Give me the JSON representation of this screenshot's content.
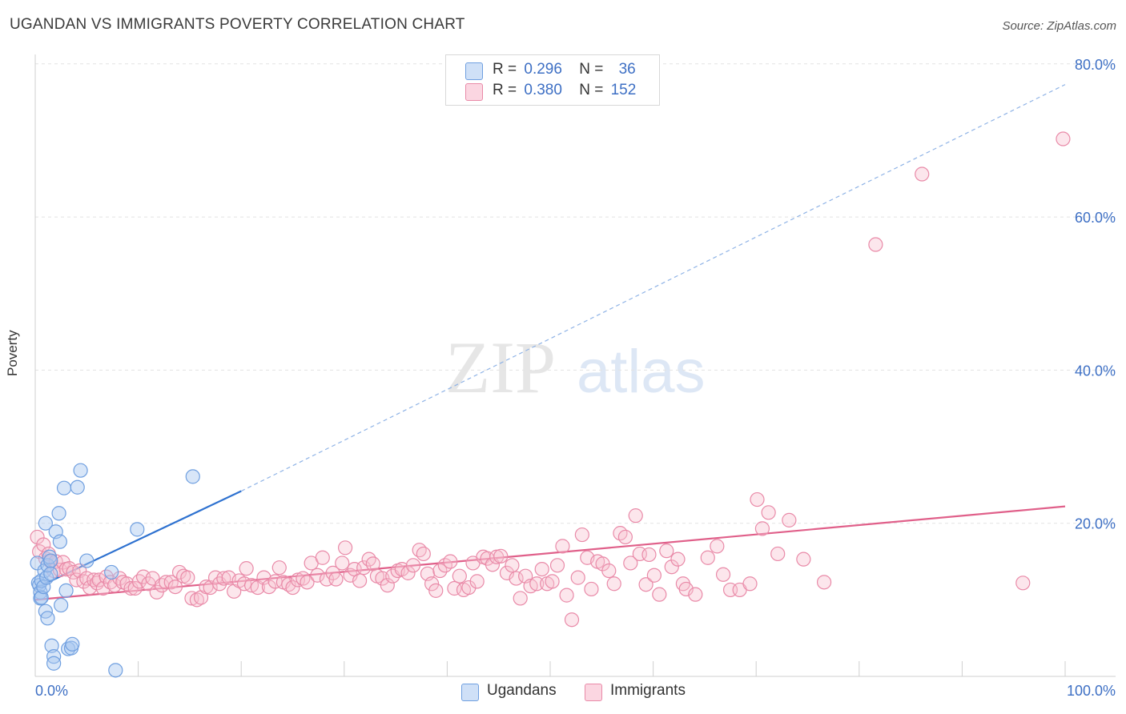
{
  "title": "UGANDAN VS IMMIGRANTS POVERTY CORRELATION CHART",
  "source": "Source: ZipAtlas.com",
  "watermark_zip": "ZIP",
  "watermark_atlas": "atlas",
  "legend": {
    "r_label": "R =",
    "n_label": "N =",
    "rows": [
      {
        "r": "0.296",
        "n": "36",
        "color": "#a9c8f0",
        "border": "#6f9fe0"
      },
      {
        "r": "0.380",
        "n": "152",
        "color": "#f7c0d0",
        "border": "#e98aa8"
      }
    ]
  },
  "bottom_legend": [
    {
      "label": "Ugandans",
      "color": "#a9c8f0",
      "border": "#6f9fe0"
    },
    {
      "label": "Immigrants",
      "color": "#f7c0d0",
      "border": "#e98aa8"
    }
  ],
  "chart_data": {
    "type": "scatter",
    "xlabel": "",
    "ylabel": "Poverty",
    "xlim": [
      0,
      100
    ],
    "ylim": [
      0,
      82
    ],
    "x_tick_labels": [
      "0.0%",
      "100.0%"
    ],
    "y_ticks": [
      20,
      40,
      60,
      80
    ],
    "y_tick_labels": [
      "20.0%",
      "40.0%",
      "60.0%",
      "80.0%"
    ],
    "grid": true,
    "legend_position": "top-center",
    "series": [
      {
        "name": "Ugandans",
        "color": "#6f9fe0",
        "trend": {
          "x0": 0,
          "y0": 11.5,
          "x1": 20,
          "y1": 24.2,
          "dash_to_x": 100,
          "dash_to_y": 77.3,
          "line_color": "#2f72d0"
        },
        "points": [
          [
            0.2,
            14.8
          ],
          [
            0.3,
            12.2
          ],
          [
            0.4,
            11.9
          ],
          [
            0.5,
            11.0
          ],
          [
            0.5,
            10.2
          ],
          [
            0.6,
            12.5
          ],
          [
            0.6,
            10.3
          ],
          [
            0.8,
            11.7
          ],
          [
            0.9,
            13.8
          ],
          [
            1.0,
            20.0
          ],
          [
            1.0,
            8.5
          ],
          [
            1.1,
            12.9
          ],
          [
            1.2,
            14.5
          ],
          [
            1.2,
            7.6
          ],
          [
            1.4,
            15.6
          ],
          [
            1.5,
            15.1
          ],
          [
            1.5,
            13.4
          ],
          [
            1.6,
            4.0
          ],
          [
            1.8,
            2.6
          ],
          [
            1.8,
            1.7
          ],
          [
            2.0,
            18.9
          ],
          [
            2.3,
            21.3
          ],
          [
            2.4,
            17.6
          ],
          [
            2.5,
            9.3
          ],
          [
            2.8,
            24.6
          ],
          [
            3.0,
            11.2
          ],
          [
            3.2,
            3.6
          ],
          [
            3.5,
            3.7
          ],
          [
            3.6,
            4.2
          ],
          [
            4.1,
            24.7
          ],
          [
            4.4,
            26.9
          ],
          [
            5.0,
            15.1
          ],
          [
            7.4,
            13.6
          ],
          [
            7.8,
            0.8
          ],
          [
            9.9,
            19.2
          ],
          [
            15.3,
            26.1
          ]
        ]
      },
      {
        "name": "Immigrants",
        "color": "#e98aa8",
        "trend": {
          "x0": 0,
          "y0": 10.0,
          "x1": 100,
          "y1": 22.2,
          "line_color": "#e0608a"
        },
        "points": [
          [
            0.2,
            18.2
          ],
          [
            0.4,
            16.3
          ],
          [
            0.8,
            17.2
          ],
          [
            1.0,
            15.4
          ],
          [
            1.3,
            16.0
          ],
          [
            1.5,
            15.0
          ],
          [
            1.8,
            13.8
          ],
          [
            2.0,
            15.0
          ],
          [
            2.4,
            13.9
          ],
          [
            2.7,
            14.9
          ],
          [
            3.0,
            14.0
          ],
          [
            3.3,
            14.1
          ],
          [
            3.7,
            13.6
          ],
          [
            4.0,
            12.6
          ],
          [
            4.3,
            13.8
          ],
          [
            4.7,
            12.4
          ],
          [
            5.0,
            12.8
          ],
          [
            5.3,
            11.6
          ],
          [
            5.7,
            12.6
          ],
          [
            6.0,
            12.2
          ],
          [
            6.2,
            12.6
          ],
          [
            6.6,
            11.5
          ],
          [
            6.9,
            13.0
          ],
          [
            7.3,
            12.3
          ],
          [
            7.7,
            11.9
          ],
          [
            8.2,
            12.8
          ],
          [
            8.5,
            12.3
          ],
          [
            8.9,
            12.1
          ],
          [
            9.3,
            11.5
          ],
          [
            9.7,
            11.5
          ],
          [
            10.1,
            12.4
          ],
          [
            10.5,
            13.0
          ],
          [
            11.0,
            12.1
          ],
          [
            11.4,
            12.8
          ],
          [
            11.8,
            11.0
          ],
          [
            12.3,
            11.9
          ],
          [
            12.7,
            12.3
          ],
          [
            13.2,
            12.3
          ],
          [
            13.6,
            11.7
          ],
          [
            14.0,
            13.6
          ],
          [
            14.4,
            13.1
          ],
          [
            14.8,
            12.9
          ],
          [
            15.2,
            10.2
          ],
          [
            15.7,
            10.0
          ],
          [
            16.1,
            10.3
          ],
          [
            16.6,
            11.7
          ],
          [
            17.0,
            11.6
          ],
          [
            17.5,
            12.9
          ],
          [
            17.9,
            12.1
          ],
          [
            18.3,
            12.8
          ],
          [
            18.8,
            12.9
          ],
          [
            19.3,
            11.1
          ],
          [
            19.8,
            12.5
          ],
          [
            20.3,
            12.1
          ],
          [
            20.5,
            14.1
          ],
          [
            21.0,
            11.9
          ],
          [
            21.6,
            11.6
          ],
          [
            22.2,
            12.9
          ],
          [
            22.7,
            11.7
          ],
          [
            23.3,
            12.4
          ],
          [
            23.7,
            14.2
          ],
          [
            24.1,
            12.3
          ],
          [
            24.6,
            12.0
          ],
          [
            25.0,
            11.6
          ],
          [
            25.5,
            12.6
          ],
          [
            26.0,
            12.8
          ],
          [
            26.4,
            12.3
          ],
          [
            26.8,
            14.8
          ],
          [
            27.4,
            13.2
          ],
          [
            27.9,
            15.5
          ],
          [
            28.3,
            12.7
          ],
          [
            28.9,
            13.5
          ],
          [
            29.2,
            12.7
          ],
          [
            29.8,
            14.8
          ],
          [
            30.1,
            16.8
          ],
          [
            30.6,
            13.2
          ],
          [
            31.0,
            14.0
          ],
          [
            31.5,
            12.5
          ],
          [
            31.9,
            14.2
          ],
          [
            32.4,
            15.3
          ],
          [
            32.8,
            14.7
          ],
          [
            33.2,
            13.1
          ],
          [
            33.7,
            12.8
          ],
          [
            34.2,
            11.9
          ],
          [
            34.7,
            13.1
          ],
          [
            35.2,
            13.8
          ],
          [
            35.6,
            14.0
          ],
          [
            36.2,
            13.5
          ],
          [
            36.7,
            14.5
          ],
          [
            37.3,
            16.5
          ],
          [
            37.7,
            16.0
          ],
          [
            38.1,
            13.4
          ],
          [
            38.5,
            12.1
          ],
          [
            38.9,
            11.2
          ],
          [
            39.3,
            13.8
          ],
          [
            39.8,
            14.5
          ],
          [
            40.3,
            15.0
          ],
          [
            40.7,
            11.5
          ],
          [
            41.2,
            13.1
          ],
          [
            41.6,
            11.3
          ],
          [
            42.1,
            11.6
          ],
          [
            42.5,
            14.8
          ],
          [
            42.9,
            12.4
          ],
          [
            43.5,
            15.6
          ],
          [
            43.9,
            15.4
          ],
          [
            44.4,
            14.6
          ],
          [
            44.8,
            15.6
          ],
          [
            45.2,
            15.7
          ],
          [
            45.8,
            13.5
          ],
          [
            46.3,
            14.5
          ],
          [
            46.7,
            12.8
          ],
          [
            47.1,
            10.2
          ],
          [
            47.6,
            13.1
          ],
          [
            48.1,
            11.8
          ],
          [
            48.7,
            12.1
          ],
          [
            49.2,
            14.0
          ],
          [
            49.7,
            12.1
          ],
          [
            50.2,
            12.4
          ],
          [
            50.7,
            14.5
          ],
          [
            51.2,
            17.0
          ],
          [
            51.6,
            10.6
          ],
          [
            52.1,
            7.4
          ],
          [
            52.7,
            12.9
          ],
          [
            53.1,
            18.5
          ],
          [
            53.6,
            15.5
          ],
          [
            54.0,
            11.4
          ],
          [
            54.6,
            15.0
          ],
          [
            55.1,
            14.7
          ],
          [
            55.7,
            13.8
          ],
          [
            56.2,
            12.1
          ],
          [
            56.8,
            18.7
          ],
          [
            57.3,
            18.2
          ],
          [
            57.8,
            14.8
          ],
          [
            58.3,
            21.0
          ],
          [
            58.7,
            16.0
          ],
          [
            59.3,
            12.0
          ],
          [
            59.6,
            15.9
          ],
          [
            60.1,
            13.2
          ],
          [
            60.6,
            10.7
          ],
          [
            61.3,
            16.4
          ],
          [
            61.8,
            14.3
          ],
          [
            62.4,
            15.3
          ],
          [
            62.9,
            12.1
          ],
          [
            63.2,
            11.4
          ],
          [
            64.1,
            10.7
          ],
          [
            65.3,
            15.5
          ],
          [
            66.2,
            17.0
          ],
          [
            66.8,
            13.3
          ],
          [
            67.5,
            11.3
          ],
          [
            68.4,
            11.3
          ],
          [
            69.4,
            12.1
          ],
          [
            70.1,
            23.1
          ],
          [
            70.6,
            19.3
          ],
          [
            71.2,
            21.4
          ],
          [
            72.1,
            16.0
          ],
          [
            73.2,
            20.4
          ],
          [
            74.6,
            15.3
          ],
          [
            76.6,
            12.3
          ],
          [
            81.6,
            56.4
          ],
          [
            86.1,
            65.6
          ],
          [
            95.9,
            12.2
          ],
          [
            99.8,
            70.2
          ]
        ]
      }
    ]
  }
}
